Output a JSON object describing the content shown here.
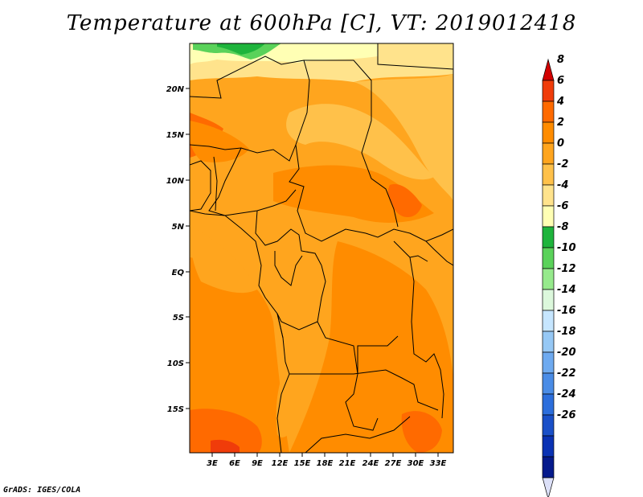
{
  "title": "Temperature at 600hPa [C], VT: 2019012418",
  "credit": "GrADS: IGES/COLA",
  "map": {
    "region": "Central Africa",
    "variable": "Temperature at 600hPa",
    "units": "C",
    "valid_time": "2019012418",
    "lon_ticks": [
      "3E",
      "6E",
      "9E",
      "12E",
      "15E",
      "18E",
      "21E",
      "24E",
      "27E",
      "30E",
      "33E"
    ],
    "lat_ticks": [
      "20N",
      "15N",
      "10N",
      "5N",
      "EQ",
      "5S",
      "10S",
      "15S"
    ]
  },
  "colorbar": {
    "levels": [
      "8",
      "6",
      "4",
      "2",
      "0",
      "-2",
      "-4",
      "-6",
      "-8",
      "-10",
      "-12",
      "-14",
      "-16",
      "-18",
      "-20",
      "-22",
      "-24",
      "-26"
    ],
    "colors": [
      "#d20000",
      "#f03c0a",
      "#ff6a00",
      "#ff8c00",
      "#ffa51e",
      "#ffc14a",
      "#ffe38c",
      "#ffffb4",
      "#1eb43c",
      "#5ad25a",
      "#96ea8c",
      "#dcf8dc",
      "#c6e6ff",
      "#96c8f5",
      "#6eaaf0",
      "#4a8ce6",
      "#2c6edc",
      "#1a50c8",
      "#0a32b4",
      "#051a8c",
      "#dce0f8"
    ]
  }
}
